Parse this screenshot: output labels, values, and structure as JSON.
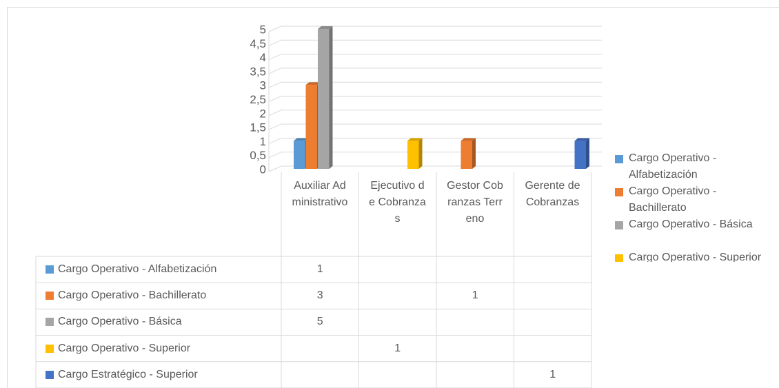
{
  "chart_data": {
    "type": "bar",
    "categories": [
      "Auxiliar Administrativo",
      "Ejecutivo de Cobranzas",
      "Gestor Cobranzas Terreno",
      "Gerente de Cobranzas"
    ],
    "series": [
      {
        "name": "Cargo Operativo - Alfabetización",
        "color": "#5b9bd5",
        "values": [
          1,
          null,
          null,
          null
        ]
      },
      {
        "name": "Cargo Operativo - Bachillerato",
        "color": "#ed7d31",
        "values": [
          3,
          null,
          1,
          null
        ]
      },
      {
        "name": "Cargo Operativo - Básica",
        "color": "#a5a5a5",
        "values": [
          5,
          null,
          null,
          null
        ]
      },
      {
        "name": "Cargo Operativo - Superior",
        "color": "#ffc000",
        "values": [
          null,
          1,
          null,
          null
        ]
      },
      {
        "name": "Cargo Estratégico - Superior",
        "color": "#4472c4",
        "values": [
          null,
          null,
          null,
          1
        ]
      }
    ],
    "ylim": [
      0,
      5
    ],
    "yticks": [
      0,
      {
        "value": 0.5,
        "label": "0,5"
      },
      1,
      {
        "value": 1.5,
        "label": "1,5"
      },
      2,
      {
        "value": 2.5,
        "label": "2,5"
      },
      3,
      {
        "value": 3.5,
        "label": "3,5"
      },
      4,
      {
        "value": 4.5,
        "label": "4,5"
      },
      5
    ],
    "grid": true,
    "legend": "right",
    "data_table": true
  }
}
